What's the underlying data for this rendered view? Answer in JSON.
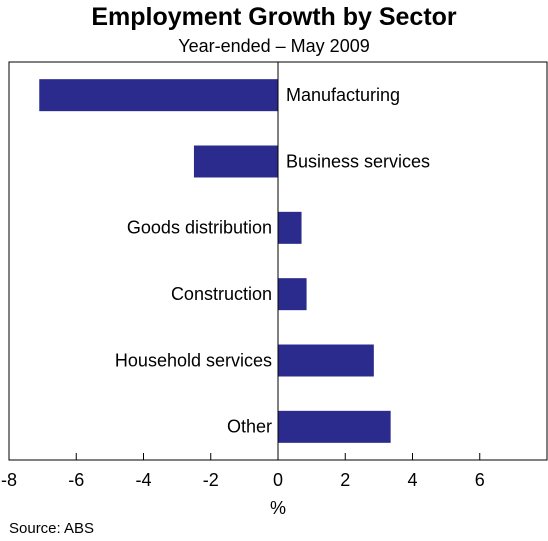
{
  "chart_data": {
    "type": "bar",
    "orientation": "horizontal",
    "title": "Employment Growth by Sector",
    "subtitle": "Year-ended – May 2009",
    "xlabel": "%",
    "xlim": [
      -8,
      8
    ],
    "xticks": [
      -8,
      -6,
      -4,
      -2,
      0,
      2,
      4,
      6
    ],
    "categories": [
      "Manufacturing",
      "Business services",
      "Goods distribution",
      "Construction",
      "Household services",
      "Other"
    ],
    "values": [
      -7.1,
      -2.5,
      0.7,
      0.85,
      2.85,
      3.35
    ],
    "bar_color": "#2b2b8e",
    "grid": false,
    "source": "Source: ABS"
  }
}
